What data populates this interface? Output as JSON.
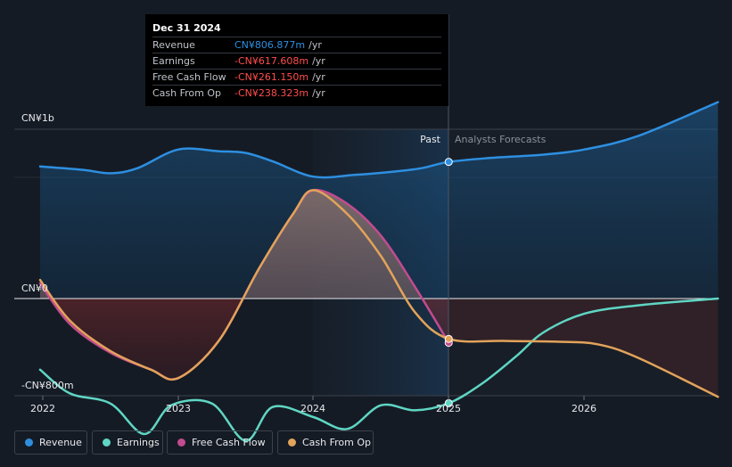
{
  "chart_data": {
    "type": "line",
    "title": "",
    "x_ticks": [
      "2022",
      "2023",
      "2024",
      "2025",
      "2026"
    ],
    "y_axis_labels": {
      "top": "CN¥1b",
      "zero": "CN¥0",
      "bottom": "-CN¥800m"
    },
    "ylim": [
      -900,
      1000
    ],
    "xlim": [
      2021.98,
      2026.99
    ],
    "divider_x": 2025.0,
    "past_label": "Past",
    "forecast_label": "Analysts Forecasts",
    "series": [
      {
        "name": "Revenue",
        "color": "#2e8fe0",
        "x": [
          2021.98,
          2022.3,
          2022.5,
          2022.7,
          2023.0,
          2023.3,
          2023.5,
          2023.7,
          2024.0,
          2024.3,
          2024.6,
          2024.8,
          2025.0,
          2025.3,
          2025.7,
          2026.0,
          2026.4,
          2026.99
        ],
        "values": [
          780,
          760,
          740,
          770,
          880,
          870,
          860,
          810,
          720,
          730,
          750,
          770,
          807,
          830,
          850,
          880,
          960,
          1160
        ]
      },
      {
        "name": "Earnings",
        "color": "#5fd6c4",
        "x": [
          2021.98,
          2022.2,
          2022.5,
          2022.75,
          2022.95,
          2023.25,
          2023.5,
          2023.7,
          2024.0,
          2024.25,
          2024.5,
          2024.75,
          2025.0,
          2025.25,
          2025.5,
          2025.7,
          2026.0,
          2026.4,
          2026.99
        ],
        "values": [
          -420,
          -560,
          -620,
          -800,
          -630,
          -620,
          -840,
          -640,
          -700,
          -770,
          -630,
          -660,
          -618,
          -500,
          -340,
          -200,
          -90,
          -40,
          0
        ]
      },
      {
        "name": "Free Cash Flow",
        "color": "#c34b8f",
        "x": [
          2021.98,
          2022.2,
          2022.5,
          2022.8,
          2023.0,
          2023.3,
          2023.6,
          2023.85,
          2024.0,
          2024.25,
          2024.5,
          2024.75,
          2025.0
        ],
        "values": [
          90,
          -150,
          -320,
          -420,
          -470,
          -250,
          180,
          500,
          640,
          560,
          370,
          70,
          -261
        ]
      },
      {
        "name": "Cash From Op",
        "color": "#e2a35a",
        "x": [
          2021.98,
          2022.2,
          2022.5,
          2022.8,
          2023.0,
          2023.3,
          2023.6,
          2023.85,
          2024.0,
          2024.25,
          2024.5,
          2024.75,
          2025.0,
          2025.4,
          2025.8,
          2026.1,
          2026.4,
          2026.99
        ],
        "values": [
          110,
          -130,
          -310,
          -420,
          -470,
          -250,
          180,
          500,
          640,
          500,
          250,
          -80,
          -238,
          -250,
          -255,
          -270,
          -350,
          -580
        ]
      }
    ],
    "tooltip": {
      "date": "Dec 31 2024",
      "rows": [
        {
          "label": "Revenue",
          "value": "CN¥806.877m",
          "unit": "/yr",
          "color": "#2e8fe0"
        },
        {
          "label": "Earnings",
          "value": "-CN¥617.608m",
          "unit": "/yr",
          "color": "#ff4d4d"
        },
        {
          "label": "Free Cash Flow",
          "value": "-CN¥261.150m",
          "unit": "/yr",
          "color": "#ff4d4d"
        },
        {
          "label": "Cash From Op",
          "value": "-CN¥238.323m",
          "unit": "/yr",
          "color": "#ff4d4d"
        }
      ]
    }
  },
  "legend": [
    {
      "label": "Revenue",
      "color": "#2e8fe0"
    },
    {
      "label": "Earnings",
      "color": "#5fd6c4"
    },
    {
      "label": "Free Cash Flow",
      "color": "#c34b8f"
    },
    {
      "label": "Cash From Op",
      "color": "#e2a35a"
    }
  ]
}
